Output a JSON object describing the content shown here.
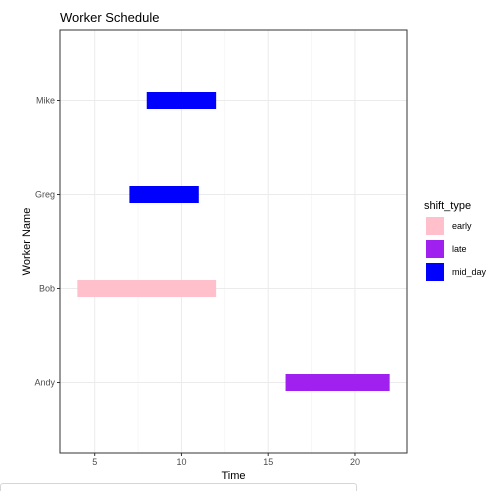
{
  "chart_data": {
    "type": "gantt",
    "title": "Worker Schedule",
    "xlabel": "Time",
    "ylabel": "Worker Name",
    "xlim": [
      3,
      23
    ],
    "x_ticks": [
      5,
      10,
      15,
      20
    ],
    "categories": [
      "Andy",
      "Bob",
      "Greg",
      "Mike"
    ],
    "legend": {
      "title": "shift_type",
      "position": "right",
      "entries": [
        {
          "label": "early",
          "color": "#FFC0CB"
        },
        {
          "label": "late",
          "color": "#A020F0"
        },
        {
          "label": "mid_day",
          "color": "#0000FF"
        }
      ]
    },
    "segments": [
      {
        "worker": "Mike",
        "start": 8,
        "end": 12,
        "shift_type": "mid_day"
      },
      {
        "worker": "Greg",
        "start": 7,
        "end": 11,
        "shift_type": "mid_day"
      },
      {
        "worker": "Bob",
        "start": 4,
        "end": 12,
        "shift_type": "early"
      },
      {
        "worker": "Andy",
        "start": 16,
        "end": 22,
        "shift_type": "late"
      }
    ],
    "grid": true
  }
}
